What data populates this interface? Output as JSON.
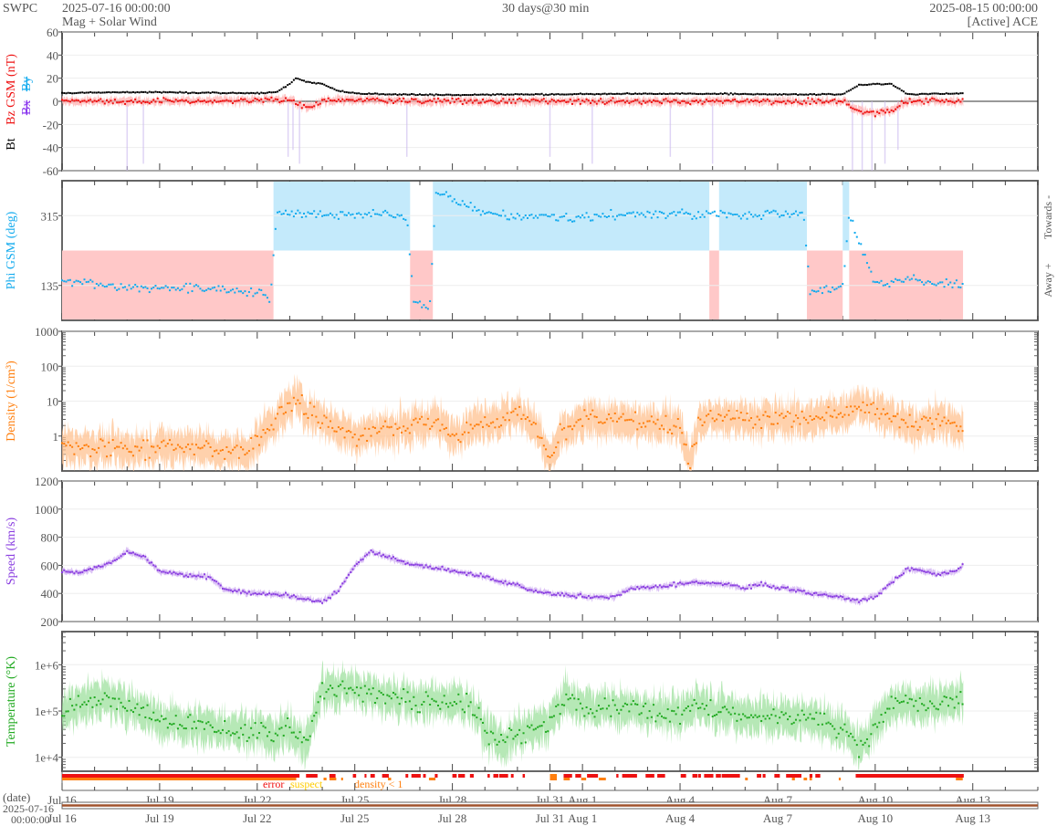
{
  "header": {
    "org": "SWPC",
    "start": "2025-07-16 00:00:00",
    "product": "Mag + Solar Wind",
    "span": "30 days@30 min",
    "end": "2025-08-15 00:00:00",
    "source": "[Active] ACE"
  },
  "date_axis": {
    "label": "(date)",
    "start_date": "2025-07-16",
    "start_time": "00:00:00"
  },
  "flags_legend": {
    "error": "error",
    "suspect": "suspect",
    "density": "density < 1"
  },
  "colors": {
    "bt": "#000000",
    "bz": "#ee1111",
    "bx": "#8833ee",
    "by": "#11aaee",
    "phi": "#11aaee",
    "density": "#ff7f0e",
    "speed": "#8a3ee0",
    "temp": "#22aa22",
    "away_band": "#ffc8c8",
    "towards_band": "#c4eafb",
    "flag_error": "#ee1111",
    "flag_suspect": "#ffcc00",
    "flag_density": "#ff7f0e"
  },
  "chart_data": [
    {
      "type": "line",
      "title": "Mag",
      "ylabel_parts": [
        "Bt",
        "Bz GSM (nT)",
        "Bx",
        "By"
      ],
      "ylim": [
        -60,
        60
      ],
      "yticks": [
        "60",
        "40",
        "20",
        "0",
        "-20",
        "-40",
        "-60"
      ],
      "ytick_values": [
        60,
        40,
        20,
        0,
        -20,
        -40,
        -60
      ],
      "xlim_days": [
        0,
        30
      ],
      "series": [
        {
          "name": "Bt",
          "days": [
            0,
            2,
            4,
            6,
            6.6,
            7,
            7.2,
            7.5,
            8,
            8.5,
            9,
            10,
            12,
            14,
            15,
            18,
            20,
            22,
            24,
            24.5,
            25,
            25.5,
            26,
            27.7
          ],
          "values": [
            7,
            8,
            7.5,
            7,
            8,
            15,
            20,
            17,
            15,
            9,
            7,
            6,
            5.5,
            6,
            6,
            6.5,
            6.5,
            6,
            6,
            14,
            15,
            15,
            6,
            7
          ]
        },
        {
          "name": "Bz GSM",
          "days": [
            0,
            3,
            6,
            7,
            7.3,
            7.7,
            8,
            9,
            12,
            14,
            16,
            20,
            24,
            24.5,
            25,
            25.5,
            26,
            27.7
          ],
          "values": [
            0,
            0,
            1,
            2,
            -3,
            -5,
            0,
            1,
            0,
            0,
            0,
            0,
            0,
            -8,
            -10,
            -8,
            0,
            0
          ]
        }
      ]
    },
    {
      "type": "scatter",
      "title": "Phi",
      "ylabel": "Phi GSM (deg)",
      "ylim": [
        45,
        405
      ],
      "yticks": [
        "315",
        "135"
      ],
      "ytick_values": [
        315,
        135
      ],
      "right_labels": [
        "Towards -",
        "Away +"
      ],
      "sectors": [
        {
          "sector": "away",
          "from": 0,
          "to": 6.5
        },
        {
          "sector": "towards",
          "from": 6.5,
          "to": 10.7
        },
        {
          "sector": "away",
          "from": 10.7,
          "to": 11.4
        },
        {
          "sector": "towards",
          "from": 11.4,
          "to": 19.9
        },
        {
          "sector": "away",
          "from": 19.9,
          "to": 20.2
        },
        {
          "sector": "towards",
          "from": 20.2,
          "to": 22.9
        },
        {
          "sector": "away",
          "from": 22.9,
          "to": 24.0
        },
        {
          "sector": "towards",
          "from": 24.0,
          "to": 24.2
        },
        {
          "sector": "away",
          "from": 24.2,
          "to": 27.7
        }
      ],
      "series": [
        {
          "name": "Phi",
          "days": [
            0,
            1,
            2,
            3,
            4,
            5,
            6,
            6.4,
            6.6,
            8,
            10,
            10.6,
            10.8,
            11.3,
            11.5,
            13,
            15,
            17,
            19,
            19.9,
            20.2,
            21,
            22.8,
            23,
            24,
            24.2,
            25,
            26,
            27,
            27.7
          ],
          "values": [
            150,
            140,
            130,
            130,
            128,
            125,
            120,
            100,
            320,
            318,
            320,
            315,
            90,
            80,
            380,
            320,
            310,
            315,
            320,
            315,
            320,
            315,
            320,
            120,
            125,
            315,
            140,
            150,
            145,
            140
          ]
        }
      ]
    },
    {
      "type": "line",
      "title": "Density",
      "ylabel": "Density (1/cm³)",
      "yscale": "log",
      "ylim": [
        0.1,
        1000
      ],
      "yticks": [
        "1000",
        "100",
        "10",
        "1"
      ],
      "ytick_values": [
        1000,
        100,
        10,
        1
      ],
      "series": [
        {
          "name": "Density",
          "days": [
            0,
            1,
            2,
            3,
            4,
            5,
            5.8,
            6.3,
            6.6,
            7,
            7.2,
            7.5,
            8,
            8.5,
            9,
            10,
            11,
            11.5,
            12,
            12.5,
            13,
            13.5,
            14,
            14.5,
            14.8,
            15,
            15.3,
            16,
            17,
            18,
            19,
            19.3,
            19.6,
            20,
            21,
            22,
            23,
            24,
            24.5,
            25,
            25.5,
            26,
            27,
            27.7
          ],
          "values": [
            0.5,
            0.5,
            0.4,
            0.5,
            0.5,
            0.35,
            0.4,
            2,
            3,
            8,
            12,
            5,
            3,
            1.5,
            1,
            1.5,
            2,
            3,
            1,
            2,
            3,
            3,
            4,
            2.5,
            0.5,
            0.2,
            1,
            3,
            3,
            2,
            2.5,
            0.15,
            3,
            3,
            3,
            3,
            3,
            5,
            8,
            6,
            3,
            2,
            3,
            1.5
          ]
        }
      ]
    },
    {
      "type": "line",
      "title": "Speed",
      "ylabel": "Speed (km/s)",
      "ylim": [
        200,
        1200
      ],
      "yticks": [
        "1200",
        "1000",
        "800",
        "600",
        "400",
        "200"
      ],
      "ytick_values": [
        1200,
        1000,
        800,
        600,
        400,
        200
      ],
      "series": [
        {
          "name": "Speed",
          "days": [
            0,
            0.5,
            1,
            1.5,
            2,
            2.5,
            3,
            3.5,
            4,
            4.5,
            5,
            5.5,
            6,
            6.5,
            7,
            7.5,
            8,
            8.5,
            9,
            9.5,
            10,
            10.5,
            11,
            11.5,
            12,
            12.5,
            13,
            13.5,
            14,
            14.5,
            15,
            15.5,
            16,
            16.5,
            17,
            17.5,
            18,
            18.5,
            19,
            19.5,
            20,
            20.5,
            21,
            21.5,
            22,
            22.5,
            23,
            23.5,
            24,
            24.5,
            25,
            25.5,
            26,
            26.5,
            27,
            27.5,
            27.7
          ],
          "values": [
            560,
            550,
            580,
            620,
            700,
            660,
            560,
            540,
            530,
            520,
            430,
            410,
            400,
            395,
            380,
            360,
            340,
            420,
            600,
            700,
            660,
            620,
            600,
            580,
            560,
            540,
            520,
            480,
            460,
            420,
            400,
            390,
            380,
            370,
            380,
            440,
            440,
            450,
            470,
            480,
            470,
            460,
            440,
            470,
            440,
            430,
            400,
            390,
            370,
            340,
            380,
            480,
            570,
            560,
            540,
            560,
            600
          ]
        }
      ]
    },
    {
      "type": "line",
      "title": "Temperature",
      "ylabel": "Temperature (°K)",
      "yscale": "log",
      "ylim": [
        5000,
        5200000
      ],
      "yticks": [
        "1e+6",
        "1e+5",
        "1e+4"
      ],
      "ytick_values": [
        1000000,
        100000,
        10000
      ],
      "series": [
        {
          "name": "Temperature",
          "days": [
            0,
            1,
            2,
            3,
            4,
            5,
            6,
            6.5,
            7,
            7.5,
            8,
            9,
            10,
            11,
            12,
            12.5,
            13,
            13.5,
            14,
            14.5,
            15,
            15.5,
            16,
            17,
            18,
            19,
            19.5,
            20,
            21,
            22,
            23,
            24,
            24.5,
            25,
            25.5,
            26,
            27,
            27.7
          ],
          "values": [
            100000,
            200000,
            150000,
            60000,
            50000,
            40000,
            40000,
            30000,
            40000,
            20000,
            300000,
            300000,
            200000,
            150000,
            150000,
            150000,
            40000,
            20000,
            30000,
            40000,
            60000,
            200000,
            120000,
            120000,
            100000,
            80000,
            150000,
            120000,
            80000,
            70000,
            70000,
            40000,
            15000,
            50000,
            150000,
            150000,
            150000,
            200000
          ]
        }
      ]
    }
  ],
  "x_axis": {
    "tick_labels": [
      "Jul 16",
      "Jul 19",
      "Jul 22",
      "Jul 25",
      "Jul 28",
      "Jul 31",
      "Aug 1",
      "Aug 4",
      "Aug 7",
      "Aug 10",
      "Aug 13"
    ],
    "tick_days": [
      0,
      3,
      6,
      9,
      12,
      15,
      16,
      19,
      22,
      25,
      28
    ]
  }
}
